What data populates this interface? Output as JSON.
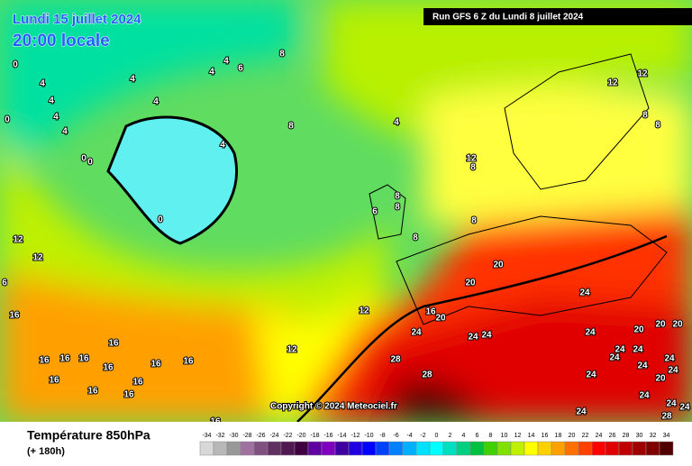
{
  "header": {
    "date": "Lundi 15 juillet 2024",
    "time": "20:00 locale",
    "run": "Run GFS 6 Z du Lundi 8 juillet 2024"
  },
  "copyright": "Copyright © 2024 Meteociel.fr",
  "legend": {
    "title": "Température 850hPa",
    "subtitle": "(+ 180h)",
    "labels": [
      -34,
      -32,
      -30,
      -28,
      -26,
      -24,
      -22,
      -20,
      -18,
      -16,
      -14,
      -12,
      -10,
      -8,
      -6,
      -4,
      -2,
      0,
      2,
      4,
      6,
      8,
      10,
      12,
      14,
      16,
      18,
      20,
      22,
      24,
      26,
      28,
      30,
      32,
      34
    ],
    "colors": [
      "#d8d8d8",
      "#b8b8b8",
      "#989898",
      "#a070a0",
      "#805080",
      "#603060",
      "#501850",
      "#400040",
      "#6000a0",
      "#8000c0",
      "#4000a0",
      "#2000e0",
      "#0000ff",
      "#0040ff",
      "#0080ff",
      "#00b0ff",
      "#00e0ff",
      "#00ffff",
      "#00e0c0",
      "#00d080",
      "#00c040",
      "#40d000",
      "#80e000",
      "#c0f000",
      "#ffff00",
      "#ffd000",
      "#ffa000",
      "#ff7000",
      "#ff4000",
      "#ff0000",
      "#e00000",
      "#c00000",
      "#a00000",
      "#800000",
      "#500000"
    ]
  },
  "map_labels": [
    0,
    4,
    4,
    4,
    4,
    4,
    4,
    6,
    8,
    4,
    4,
    0,
    0,
    0,
    4,
    8,
    4,
    12,
    8,
    8,
    8,
    6,
    8,
    8,
    12,
    12,
    8,
    8,
    0,
    12,
    12,
    6,
    16,
    16,
    16,
    16,
    16,
    16,
    16,
    16,
    16,
    16,
    16,
    16,
    12,
    12,
    16,
    20,
    20,
    20,
    24,
    24,
    24,
    24,
    28,
    28,
    24,
    20,
    20,
    20,
    24,
    24,
    24,
    24,
    24,
    24,
    20,
    24,
    24,
    24,
    28,
    24,
    24,
    16
  ]
}
